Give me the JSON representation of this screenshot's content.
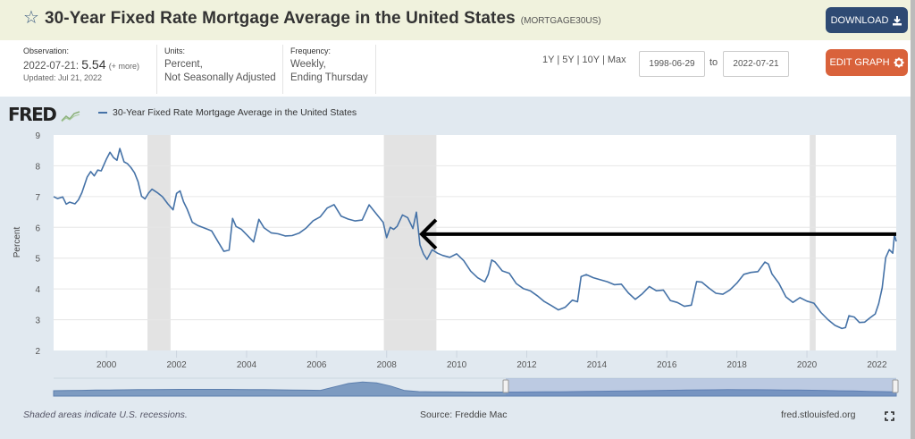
{
  "header": {
    "title": "30-Year Fixed Rate Mortgage Average in the United States",
    "series_id": "(MORTGAGE30US)",
    "star_icon": "star-outline-icon",
    "download_label": "DOWNLOAD",
    "download_icon": "download-icon"
  },
  "meta": {
    "observation_label": "Observation:",
    "observation_date": "2022-07-21:",
    "observation_value": "5.54",
    "observation_more": "(+ more)",
    "updated": "Updated: Jul 21, 2022",
    "units_label": "Units:",
    "units_line1": "Percent,",
    "units_line2": "Not Seasonally Adjusted",
    "frequency_label": "Frequency:",
    "frequency_line1": "Weekly,",
    "frequency_line2": "Ending Thursday"
  },
  "controls": {
    "range_1y": "1Y",
    "range_5y": "5Y",
    "range_10y": "10Y",
    "range_max": "Max",
    "separator": "|",
    "start_date": "1998-06-29",
    "to_label": "to",
    "end_date": "2022-07-21",
    "edit_graph_label": "EDIT GRAPH",
    "edit_icon": "gear-icon"
  },
  "branding": {
    "logo_text": "FRED",
    "logo_icon": "chart-line-icon"
  },
  "footer": {
    "recession_note": "Shaded areas indicate U.S. recessions.",
    "source": "Source: Freddie Mac",
    "site": "fred.stlouisfed.org",
    "fullscreen_icon": "fullscreen-icon"
  },
  "colors": {
    "series": "#4572a7",
    "recession": "#e3e3e3",
    "download_button": "#2e4a73",
    "edit_button": "#d9623b",
    "annotation_arrow": "#000000"
  },
  "chart_data": {
    "type": "line",
    "title": "30-Year Fixed Rate Mortgage Average in the United States",
    "xlabel": "",
    "ylabel": "Percent",
    "xlim": [
      1998.49,
      2022.55
    ],
    "ylim": [
      2,
      9
    ],
    "yticks": [
      2,
      3,
      4,
      5,
      6,
      7,
      8,
      9
    ],
    "xticks": [
      2000,
      2002,
      2004,
      2006,
      2008,
      2010,
      2012,
      2014,
      2016,
      2018,
      2020,
      2022
    ],
    "grid": true,
    "legend": "top-left",
    "legend_entries": [
      "30-Year Fixed Rate Mortgage Average in the United States"
    ],
    "recessions": [
      {
        "start": 2001.17,
        "end": 2001.83
      },
      {
        "start": 2007.92,
        "end": 2009.42
      },
      {
        "start": 2020.08,
        "end": 2020.25
      }
    ],
    "annotation": {
      "type": "arrow",
      "from": [
        2022.55,
        5.78
      ],
      "to": [
        2009.0,
        5.78
      ],
      "color": "#000000"
    },
    "series": [
      {
        "name": "30-Year Fixed Rate Mortgage Average in the United States",
        "x": [
          1998.49,
          1998.6,
          1998.75,
          1998.85,
          1998.95,
          1999.1,
          1999.2,
          1999.3,
          1999.45,
          1999.55,
          1999.65,
          1999.75,
          1999.85,
          2000.0,
          2000.1,
          2000.2,
          2000.3,
          2000.38,
          2000.5,
          2000.6,
          2000.7,
          2000.8,
          2000.9,
          2001.0,
          2001.1,
          2001.2,
          2001.3,
          2001.45,
          2001.6,
          2001.75,
          2001.9,
          2002.0,
          2002.1,
          2002.2,
          2002.3,
          2002.45,
          2002.6,
          2002.75,
          2002.9,
          2003.0,
          2003.2,
          2003.35,
          2003.5,
          2003.6,
          2003.7,
          2003.85,
          2004.0,
          2004.2,
          2004.35,
          2004.5,
          2004.7,
          2004.9,
          2005.1,
          2005.3,
          2005.5,
          2005.7,
          2005.9,
          2006.1,
          2006.3,
          2006.5,
          2006.7,
          2006.9,
          2007.1,
          2007.3,
          2007.5,
          2007.7,
          2007.9,
          2008.0,
          2008.1,
          2008.2,
          2008.3,
          2008.45,
          2008.6,
          2008.75,
          2008.85,
          2008.95,
          2009.05,
          2009.15,
          2009.3,
          2009.45,
          2009.6,
          2009.8,
          2010.0,
          2010.2,
          2010.4,
          2010.6,
          2010.8,
          2010.9,
          2011.0,
          2011.1,
          2011.3,
          2011.5,
          2011.7,
          2011.9,
          2012.1,
          2012.3,
          2012.5,
          2012.7,
          2012.9,
          2013.1,
          2013.3,
          2013.45,
          2013.55,
          2013.7,
          2013.9,
          2014.1,
          2014.3,
          2014.5,
          2014.7,
          2014.9,
          2015.1,
          2015.3,
          2015.5,
          2015.7,
          2015.9,
          2016.1,
          2016.3,
          2016.5,
          2016.7,
          2016.85,
          2017.0,
          2017.2,
          2017.4,
          2017.6,
          2017.8,
          2018.0,
          2018.2,
          2018.4,
          2018.6,
          2018.8,
          2018.9,
          2019.0,
          2019.2,
          2019.4,
          2019.6,
          2019.8,
          2020.0,
          2020.2,
          2020.4,
          2020.6,
          2020.8,
          2021.0,
          2021.1,
          2021.2,
          2021.35,
          2021.5,
          2021.65,
          2021.8,
          2021.95,
          2022.05,
          2022.15,
          2022.25,
          2022.35,
          2022.45,
          2022.5,
          2022.55
        ],
        "y": [
          7.0,
          6.9,
          6.95,
          6.75,
          6.85,
          6.8,
          6.9,
          7.1,
          7.6,
          7.8,
          7.7,
          7.9,
          7.85,
          8.2,
          8.4,
          8.25,
          8.2,
          8.6,
          8.15,
          8.05,
          7.9,
          7.75,
          7.5,
          7.05,
          6.95,
          7.1,
          7.2,
          7.1,
          7.0,
          6.8,
          6.6,
          7.1,
          7.15,
          6.8,
          6.6,
          6.2,
          6.1,
          6.0,
          5.9,
          5.85,
          5.5,
          5.25,
          5.3,
          6.3,
          6.0,
          5.9,
          5.75,
          5.55,
          6.3,
          6.0,
          5.8,
          5.75,
          5.7,
          5.75,
          5.85,
          6.0,
          6.2,
          6.3,
          6.6,
          6.75,
          6.4,
          6.3,
          6.2,
          6.2,
          6.7,
          6.45,
          6.2,
          5.7,
          6.0,
          5.9,
          6.0,
          6.4,
          6.35,
          6.0,
          6.5,
          5.4,
          5.1,
          4.95,
          5.3,
          5.2,
          5.1,
          5.0,
          5.1,
          4.9,
          4.6,
          4.4,
          4.25,
          4.45,
          4.9,
          4.85,
          4.6,
          4.55,
          4.2,
          4.0,
          3.9,
          3.75,
          3.6,
          3.5,
          3.35,
          3.4,
          3.6,
          3.55,
          4.4,
          4.5,
          4.4,
          4.3,
          4.2,
          4.1,
          4.15,
          3.9,
          3.7,
          3.85,
          4.05,
          3.9,
          3.95,
          3.65,
          3.6,
          3.45,
          3.45,
          4.2,
          4.2,
          4.05,
          3.9,
          3.85,
          3.95,
          4.15,
          4.45,
          4.55,
          4.6,
          4.9,
          4.8,
          4.45,
          4.15,
          3.75,
          3.6,
          3.75,
          3.6,
          3.5,
          3.2,
          3.0,
          2.85,
          2.75,
          2.75,
          3.1,
          3.05,
          2.9,
          2.95,
          3.1,
          3.2,
          3.5,
          4.0,
          5.0,
          5.3,
          5.2,
          5.78,
          5.54
        ]
      }
    ]
  }
}
